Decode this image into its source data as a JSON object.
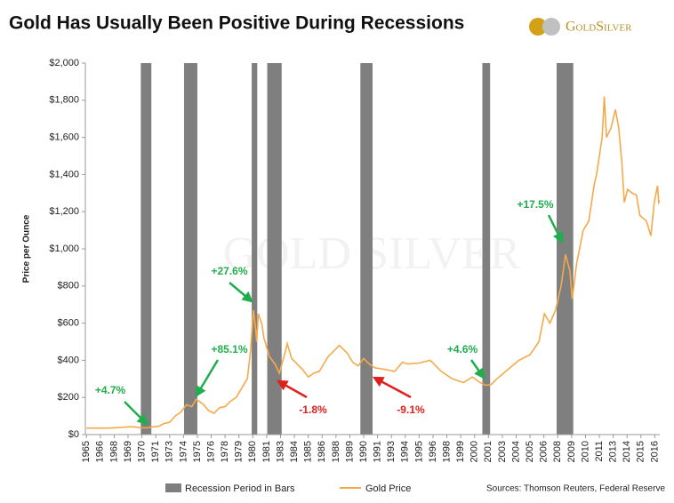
{
  "chart_data": {
    "type": "line",
    "title": "Gold Has Usually Been Positive During Recessions",
    "logo": "GoldSilver",
    "watermark": "GOLD SILVER",
    "y_label": "Price per Ounce",
    "source": "Sources: Thomson Reuters, Federal Reserve",
    "xlim": [
      1964.9,
      2016.7
    ],
    "ylim": [
      0,
      2000
    ],
    "yticks": [
      {
        "value": 0,
        "label": "$0"
      },
      {
        "value": 200,
        "label": "$200"
      },
      {
        "value": 400,
        "label": "$400"
      },
      {
        "value": 600,
        "label": "$600"
      },
      {
        "value": 800,
        "label": "$800"
      },
      {
        "value": 1000,
        "label": "$1,000"
      },
      {
        "value": 1200,
        "label": "$1,200"
      },
      {
        "value": 1400,
        "label": "$1,400"
      },
      {
        "value": 1600,
        "label": "$1,600"
      },
      {
        "value": 1800,
        "label": "$1,800"
      },
      {
        "value": 2000,
        "label": "$2,000"
      }
    ],
    "xticks": [
      1965,
      {
        "value": 1966.25,
        "label": "1966"
      },
      {
        "value": 1967.5,
        "label": "1968"
      },
      {
        "value": 1968.75,
        "label": "1969"
      },
      1970,
      {
        "value": 1971.25,
        "label": "1971"
      },
      {
        "value": 1972.5,
        "label": "1973"
      },
      {
        "value": 1973.75,
        "label": "1974"
      },
      1975,
      {
        "value": 1976.25,
        "label": "1976"
      },
      {
        "value": 1977.5,
        "label": "1978"
      },
      {
        "value": 1978.75,
        "label": "1979"
      },
      1980,
      {
        "value": 1981.25,
        "label": "1981"
      },
      {
        "value": 1982.5,
        "label": "1983"
      },
      {
        "value": 1983.75,
        "label": "1984"
      },
      1985,
      {
        "value": 1986.25,
        "label": "1986"
      },
      {
        "value": 1987.5,
        "label": "1988"
      },
      {
        "value": 1988.75,
        "label": "1989"
      },
      1990,
      {
        "value": 1991.25,
        "label": "1991"
      },
      {
        "value": 1992.5,
        "label": "1993"
      },
      {
        "value": 1993.75,
        "label": "1994"
      },
      1995,
      {
        "value": 1996.25,
        "label": "1996"
      },
      {
        "value": 1997.5,
        "label": "1998"
      },
      {
        "value": 1998.75,
        "label": "1999"
      },
      2000,
      {
        "value": 2001.25,
        "label": "2001"
      },
      {
        "value": 2002.5,
        "label": "2003"
      },
      {
        "value": 2003.75,
        "label": "2004"
      },
      2005,
      {
        "value": 2006.25,
        "label": "2006"
      },
      {
        "value": 2007.5,
        "label": "2008"
      },
      {
        "value": 2008.75,
        "label": "2009"
      },
      2010,
      {
        "value": 2011.25,
        "label": "2011"
      },
      {
        "value": 2012.5,
        "label": "2013"
      },
      {
        "value": 2013.75,
        "label": "2014"
      },
      2015,
      {
        "value": 2016.25,
        "label": "2016"
      }
    ],
    "recessions": {
      "name": "Recession Period in Bars",
      "color": "#7f7f7f",
      "spans": [
        [
          1969.9,
          1970.85
        ],
        [
          1973.8,
          1975.0
        ],
        [
          1979.9,
          1980.4
        ],
        [
          1981.3,
          1982.6
        ],
        [
          1989.7,
          1990.8
        ],
        [
          2000.7,
          2001.4
        ],
        [
          2007.4,
          2008.9
        ]
      ]
    },
    "series": [
      {
        "name": "Gold Price",
        "color": "#f5a94a",
        "x": [
          1965,
          1966,
          1967,
          1968,
          1968.5,
          1969,
          1969.5,
          1970,
          1970.5,
          1971,
          1971.5,
          1972,
          1972.5,
          1973,
          1973.5,
          1974,
          1974.5,
          1974.9,
          1975.5,
          1976,
          1976.5,
          1977,
          1977.5,
          1978,
          1978.5,
          1979,
          1979.5,
          1979.8,
          1980.05,
          1980.2,
          1980.35,
          1980.5,
          1980.8,
          1981.0,
          1981.5,
          1982.0,
          1982.4,
          1982.9,
          1983.1,
          1983.5,
          1984,
          1984.5,
          1985,
          1985.5,
          1986,
          1986.8,
          1987.3,
          1987.8,
          1988.5,
          1989,
          1989.5,
          1990,
          1990.5,
          1991,
          1992,
          1992.8,
          1993.5,
          1994,
          1995,
          1996,
          1997,
          1998,
          1999,
          1999.8,
          2000.5,
          2001,
          2001.5,
          2002,
          2003,
          2004,
          2005,
          2005.8,
          2006.3,
          2006.8,
          2007.3,
          2007.8,
          2008.2,
          2008.6,
          2008.8,
          2009.2,
          2009.8,
          2010.3,
          2010.8,
          2011.0,
          2011.5,
          2011.7,
          2011.9,
          2012.3,
          2012.7,
          2013.0,
          2013.3,
          2013.5,
          2013.8,
          2014.2,
          2014.6,
          2014.9,
          2015.5,
          2015.9,
          2016.2,
          2016.5,
          2016.6,
          2016.7
        ],
        "values": [
          35,
          35,
          35,
          38,
          40,
          42,
          40,
          36,
          37,
          42,
          44,
          60,
          66,
          100,
          120,
          160,
          150,
          190,
          165,
          130,
          115,
          145,
          150,
          180,
          200,
          250,
          300,
          450,
          670,
          600,
          500,
          650,
          600,
          520,
          420,
          380,
          330,
          440,
          490,
          410,
          380,
          350,
          310,
          330,
          340,
          420,
          450,
          480,
          440,
          390,
          370,
          410,
          380,
          360,
          350,
          340,
          390,
          380,
          385,
          400,
          340,
          300,
          280,
          310,
          280,
          265,
          270,
          300,
          350,
          400,
          430,
          500,
          650,
          600,
          670,
          800,
          970,
          880,
          730,
          920,
          1100,
          1150,
          1350,
          1400,
          1600,
          1820,
          1600,
          1650,
          1750,
          1650,
          1450,
          1250,
          1320,
          1300,
          1290,
          1180,
          1150,
          1070,
          1250,
          1340,
          1250,
          1260
        ]
      }
    ],
    "annotations": [
      {
        "text": "+4.7%",
        "color": "#1fae4b"
      },
      {
        "text": "+85.1%",
        "color": "#1fae4b"
      },
      {
        "text": "+27.6%",
        "color": "#1fae4b"
      },
      {
        "text": "-1.8%",
        "color": "#e0201b"
      },
      {
        "text": "-9.1%",
        "color": "#e0201b"
      },
      {
        "text": "+4.6%",
        "color": "#1fae4b"
      },
      {
        "text": "+17.5%",
        "color": "#1fae4b"
      }
    ]
  }
}
